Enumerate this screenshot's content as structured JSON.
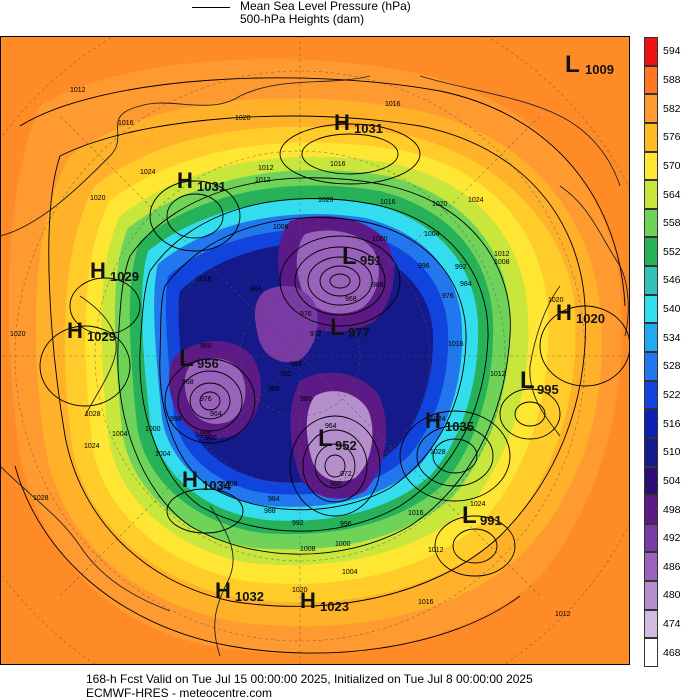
{
  "legend": {
    "line1": "Mean Sea Level Pressure (hPa)",
    "line2": "500-hPa Heights (dam)"
  },
  "colorbar": {
    "labels": [
      "594",
      "588",
      "582",
      "576",
      "570",
      "564",
      "558",
      "552",
      "546",
      "540",
      "534",
      "528",
      "522",
      "516",
      "510",
      "504",
      "498",
      "492",
      "486",
      "480",
      "474",
      "468"
    ],
    "colors": [
      "#ee1111",
      "#ff7722",
      "#ff9933",
      "#ffbb22",
      "#ffe633",
      "#c8e63c",
      "#6fd35a",
      "#27b25a",
      "#34c1b6",
      "#33ddee",
      "#22aaee",
      "#2277ee",
      "#1144dd",
      "#0d1fb5",
      "#141a8a",
      "#2f0d77",
      "#5c1a86",
      "#7a3aa4",
      "#9963bb",
      "#b58fcc",
      "#d2bce0",
      "#ffffff"
    ]
  },
  "systems": [
    {
      "type": "L",
      "value": "1009"
    },
    {
      "type": "H",
      "value": "1031"
    },
    {
      "type": "H",
      "value": "1031"
    },
    {
      "type": "L",
      "value": "951"
    },
    {
      "type": "H",
      "value": "1029"
    },
    {
      "type": "H",
      "value": "1029"
    },
    {
      "type": "H",
      "value": "1020"
    },
    {
      "type": "L",
      "value": "956"
    },
    {
      "type": "L",
      "value": "977"
    },
    {
      "type": "L",
      "value": "995"
    },
    {
      "type": "H",
      "value": "1035"
    },
    {
      "type": "L",
      "value": "952"
    },
    {
      "type": "H",
      "value": "1034"
    },
    {
      "type": "L",
      "value": "991"
    },
    {
      "type": "H",
      "value": "1032"
    },
    {
      "type": "H",
      "value": "1023"
    }
  ],
  "isobar_labels": [
    "1012",
    "1016",
    "1020",
    "1024",
    "1016",
    "1020",
    "1012",
    "1016",
    "1020",
    "1024",
    "1008",
    "1004",
    "1000",
    "996",
    "992",
    "988",
    "984",
    "980",
    "976",
    "972",
    "968",
    "964",
    "960",
    "1024",
    "1028",
    "1020",
    "1008",
    "1004",
    "996",
    "984",
    "976",
    "1016",
    "1012",
    "1020",
    "1024",
    "1028",
    "1016",
    "1012",
    "1008",
    "1004",
    "1000",
    "996",
    "992",
    "988",
    "984",
    "1020",
    "1016",
    "1012",
    "1024",
    "1028",
    "1016",
    "1012",
    "1020",
    "1016",
    "1012",
    "1008",
    "1004",
    "1000",
    "996",
    "992",
    "988",
    "984",
    "980",
    "976",
    "972",
    "968",
    "964",
    "960"
  ],
  "footer": {
    "line1": "168-h Fcst Valid on Tue Jul 15 00:00:00 2025, Initialized on Tue Jul  8 00:00:00 2025",
    "line2": "ECMWF-HRES  - meteocentre.com"
  }
}
